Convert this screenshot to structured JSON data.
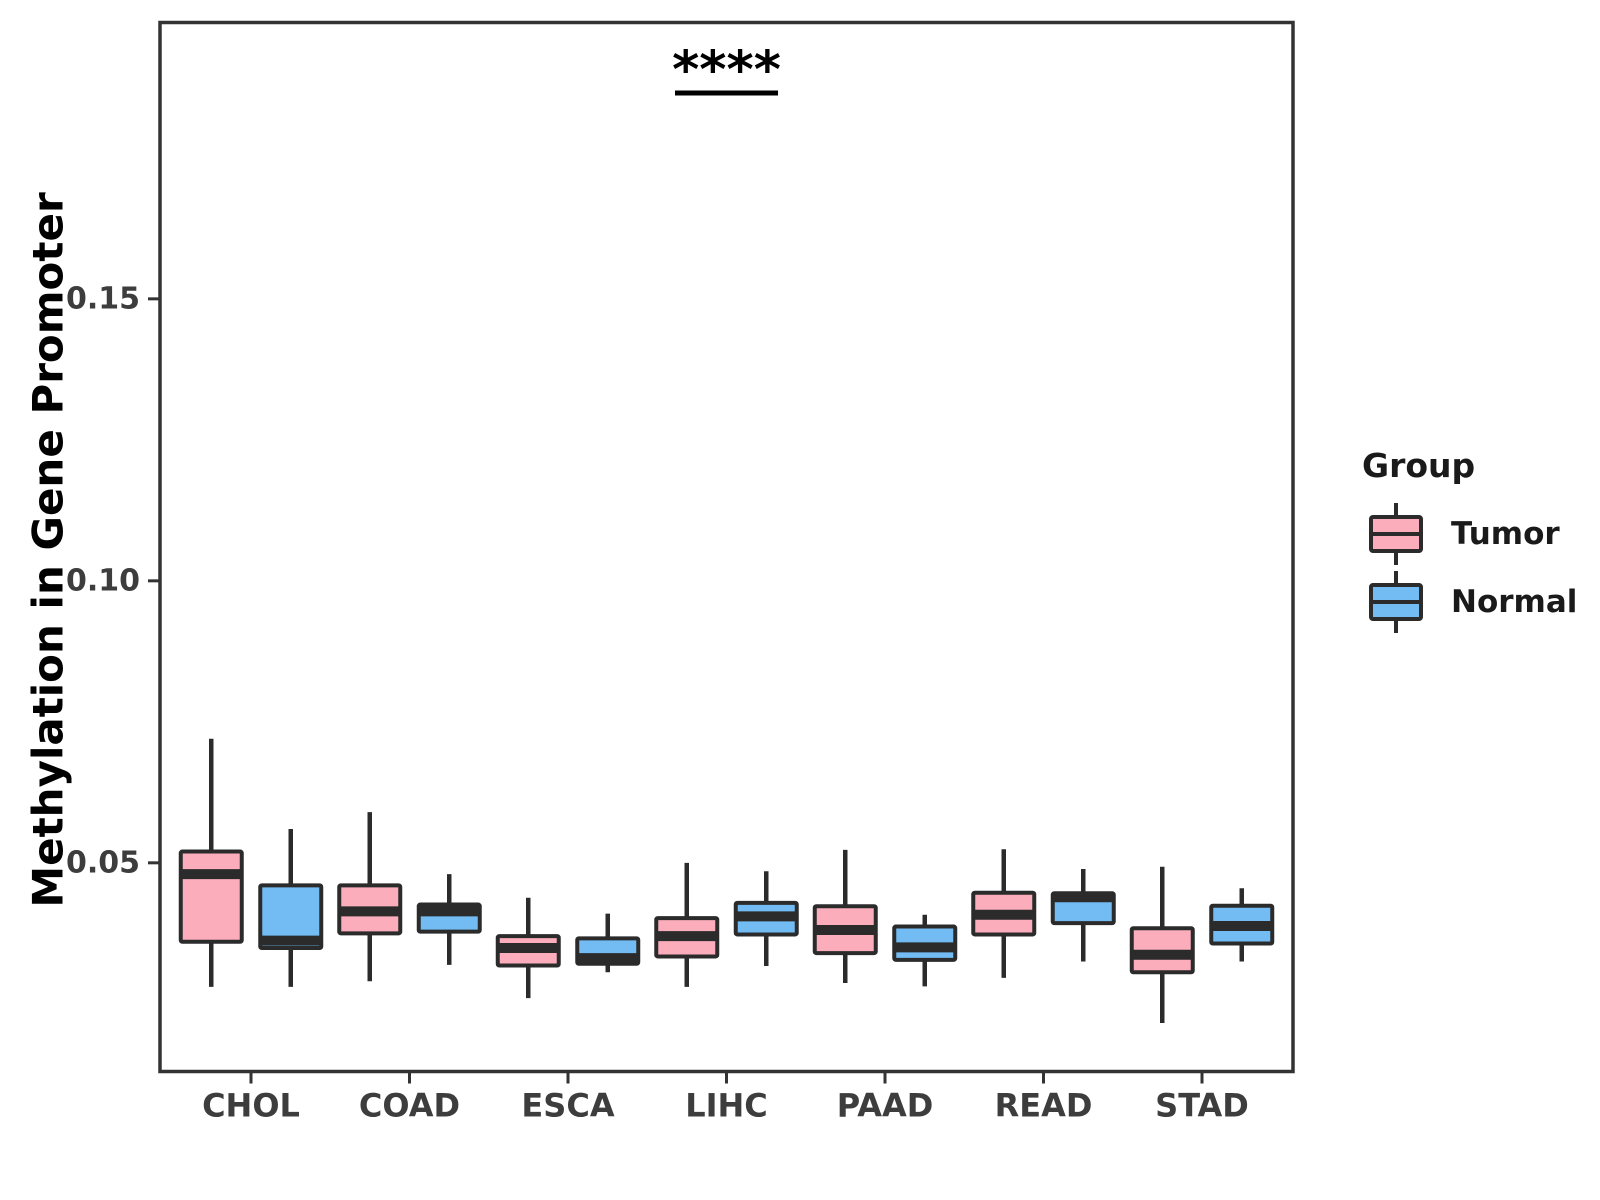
{
  "figure": {
    "legend": {
      "title": "Group",
      "items": [
        {
          "label": "Tumor",
          "color": "#FBADBC"
        },
        {
          "label": "Normal",
          "color": "#72BCF3"
        }
      ]
    }
  },
  "chart_data": {
    "type": "boxplot",
    "title": "",
    "xlabel": "",
    "ylabel": "Methylation in Gene Promoter",
    "categories": [
      "CHOL",
      "COAD",
      "ESCA",
      "LIHC",
      "PAAD",
      "READ",
      "STAD"
    ],
    "ylim": [
      0.013,
      0.199
    ],
    "yticks": [
      0.05,
      0.1,
      0.15
    ],
    "ytick_labels": [
      "0.05",
      "0.10",
      "0.15"
    ],
    "grid": false,
    "legend_position": "right",
    "box_border_color": "#2B2B2B",
    "axis_color": "#333333",
    "axis_text_color": "#3D3D3D",
    "annotation_color": "#000000",
    "series": [
      {
        "name": "Tumor",
        "color": "#FBADBC",
        "boxes": [
          {
            "category": "CHOL",
            "min": 0.028,
            "q1": 0.036,
            "median": 0.048,
            "q3": 0.052,
            "max": 0.072
          },
          {
            "category": "COAD",
            "min": 0.029,
            "q1": 0.0375,
            "median": 0.0414,
            "q3": 0.046,
            "max": 0.059
          },
          {
            "category": "ESCA",
            "min": 0.026,
            "q1": 0.0318,
            "median": 0.0349,
            "q3": 0.037,
            "max": 0.0438
          },
          {
            "category": "LIHC",
            "min": 0.028,
            "q1": 0.0334,
            "median": 0.037,
            "q3": 0.0402,
            "max": 0.05
          },
          {
            "category": "PAAD",
            "min": 0.0287,
            "q1": 0.034,
            "median": 0.0381,
            "q3": 0.0423,
            "max": 0.0523
          },
          {
            "category": "READ",
            "min": 0.0296,
            "q1": 0.0373,
            "median": 0.0408,
            "q3": 0.0447,
            "max": 0.0524
          },
          {
            "category": "STAD",
            "min": 0.0216,
            "q1": 0.0306,
            "median": 0.0337,
            "q3": 0.0384,
            "max": 0.0493
          }
        ]
      },
      {
        "name": "Normal",
        "color": "#72BCF3",
        "boxes": [
          {
            "category": "CHOL",
            "min": 0.028,
            "q1": 0.0349,
            "median": 0.0362,
            "q3": 0.046,
            "max": 0.056
          },
          {
            "category": "COAD",
            "min": 0.0319,
            "q1": 0.0378,
            "median": 0.0414,
            "q3": 0.0426,
            "max": 0.048
          },
          {
            "category": "ESCA",
            "min": 0.0306,
            "q1": 0.0321,
            "median": 0.0331,
            "q3": 0.0366,
            "max": 0.041
          },
          {
            "category": "LIHC",
            "min": 0.0317,
            "q1": 0.0373,
            "median": 0.0405,
            "q3": 0.0429,
            "max": 0.0485
          },
          {
            "category": "PAAD",
            "min": 0.0281,
            "q1": 0.0328,
            "median": 0.035,
            "q3": 0.0387,
            "max": 0.0408
          },
          {
            "category": "READ",
            "min": 0.0325,
            "q1": 0.0393,
            "median": 0.0439,
            "q3": 0.0446,
            "max": 0.0489
          },
          {
            "category": "STAD",
            "min": 0.0325,
            "q1": 0.0357,
            "median": 0.0388,
            "q3": 0.0424,
            "max": 0.0455
          }
        ]
      }
    ],
    "annotations": [
      {
        "text": "****",
        "category": "LIHC",
        "text_y": 0.19,
        "bar_y": 0.1865
      }
    ]
  }
}
